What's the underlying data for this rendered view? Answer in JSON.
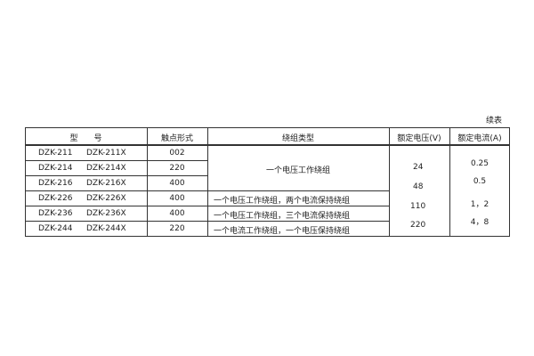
{
  "continued_label": "续表",
  "headers": [
    "型　　号",
    "触点形式",
    "绕组类型",
    "额定电压(V)",
    "额定电流(A)"
  ],
  "rows": [
    {
      "model": "DZK-211",
      "model_x": "DZK-211X",
      "contact": "002"
    },
    {
      "model": "DZK-214",
      "model_x": "DZK-214X",
      "contact": "220"
    },
    {
      "model": "DZK-216",
      "model_x": "DZK-216X",
      "contact": "400"
    },
    {
      "model": "DZK-226",
      "model_x": "DZK-226X",
      "contact": "400"
    },
    {
      "model": "DZK-236",
      "model_x": "DZK-236X",
      "contact": "400"
    },
    {
      "model": "DZK-244",
      "model_x": "DZK-244X",
      "contact": "220"
    }
  ],
  "winding_types": [
    "一个电压工作绕组",
    "一个电压工作绕组，两个电流保持绕组",
    "一个电压工作绕组，三个电流保持绕组",
    "一个电流工作绕组，一个电压保持绕组"
  ],
  "voltages": [
    "24",
    "48",
    "110",
    "220"
  ],
  "currents": [
    "0.25",
    "0.5",
    "1，2",
    "4，8"
  ]
}
